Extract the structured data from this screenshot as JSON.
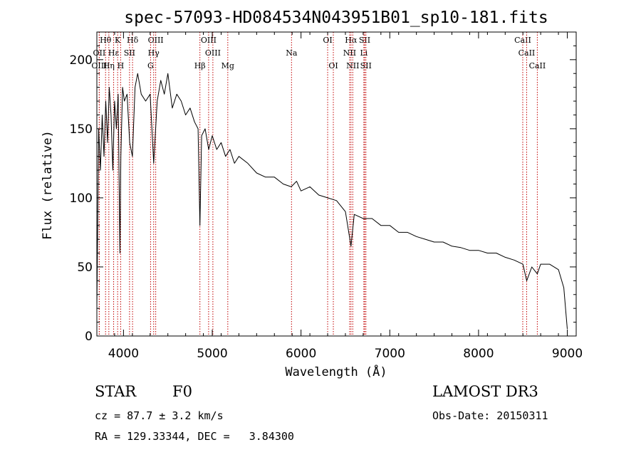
{
  "chart_data": {
    "type": "line",
    "title": "spec-57093-HD084534N043951B01_sp10-181.fits",
    "xlabel": "Wavelength (Å)",
    "ylabel": "Flux (relative)",
    "xlim": [
      3700,
      9100
    ],
    "ylim": [
      0,
      220
    ],
    "x_ticks": [
      4000,
      5000,
      6000,
      7000,
      8000,
      9000
    ],
    "x_tick_labels": [
      "4000",
      "5000",
      "6000",
      "7000",
      "8000",
      "9000"
    ],
    "y_ticks": [
      0,
      50,
      100,
      150,
      200
    ],
    "y_tick_labels": [
      "0",
      "50",
      "100",
      "150",
      "200"
    ],
    "series": [
      {
        "name": "flux",
        "x": [
          3700,
          3720,
          3740,
          3760,
          3780,
          3800,
          3820,
          3840,
          3860,
          3880,
          3900,
          3920,
          3940,
          3960,
          3970,
          3990,
          4010,
          4040,
          4070,
          4100,
          4130,
          4160,
          4200,
          4250,
          4300,
          4340,
          4380,
          4420,
          4460,
          4500,
          4550,
          4600,
          4650,
          4700,
          4750,
          4800,
          4840,
          4861,
          4880,
          4920,
          4960,
          5000,
          5050,
          5100,
          5150,
          5200,
          5250,
          5300,
          5400,
          5500,
          5600,
          5700,
          5800,
          5890,
          5950,
          6000,
          6100,
          6200,
          6300,
          6400,
          6500,
          6563,
          6600,
          6700,
          6800,
          6900,
          7000,
          7100,
          7200,
          7300,
          7400,
          7500,
          7600,
          7700,
          7800,
          7900,
          8000,
          8100,
          8200,
          8300,
          8400,
          8500,
          8542,
          8600,
          8662,
          8700,
          8800,
          8900,
          8960,
          9000
        ],
        "values": [
          20,
          150,
          120,
          160,
          130,
          170,
          140,
          180,
          160,
          120,
          170,
          150,
          175,
          60,
          130,
          180,
          170,
          175,
          140,
          130,
          180,
          190,
          175,
          170,
          175,
          125,
          170,
          185,
          175,
          190,
          165,
          175,
          170,
          160,
          165,
          155,
          150,
          80,
          145,
          150,
          135,
          145,
          135,
          140,
          130,
          135,
          125,
          130,
          125,
          118,
          115,
          115,
          110,
          108,
          112,
          105,
          108,
          102,
          100,
          98,
          90,
          65,
          88,
          85,
          85,
          80,
          80,
          75,
          75,
          72,
          70,
          68,
          68,
          65,
          64,
          62,
          62,
          60,
          60,
          57,
          55,
          52,
          40,
          50,
          45,
          52,
          52,
          48,
          35,
          5
        ]
      }
    ],
    "spectral_lines": [
      {
        "label": "Hθ",
        "x": 3798,
        "row": 0
      },
      {
        "label": "K",
        "x": 3934,
        "row": 0
      },
      {
        "label": "Hδ",
        "x": 4102,
        "row": 0
      },
      {
        "label": "OIII",
        "x": 4363,
        "row": 0
      },
      {
        "label": "OIII",
        "x": 4959,
        "row": 0
      },
      {
        "label": "OI",
        "x": 6300,
        "row": 0
      },
      {
        "label": "Hα",
        "x": 6563,
        "row": 0
      },
      {
        "label": "SII",
        "x": 6717,
        "row": 0
      },
      {
        "label": "CaII",
        "x": 8498,
        "row": 0
      },
      {
        "label": "OII",
        "x": 3727,
        "row": 1
      },
      {
        "label": "Hε",
        "x": 3889,
        "row": 1
      },
      {
        "label": "SII",
        "x": 4068,
        "row": 1
      },
      {
        "label": "Hγ",
        "x": 4340,
        "row": 1
      },
      {
        "label": "OIII",
        "x": 5007,
        "row": 1
      },
      {
        "label": "Na",
        "x": 5893,
        "row": 1
      },
      {
        "label": "NII",
        "x": 6548,
        "row": 1
      },
      {
        "label": "Li",
        "x": 6708,
        "row": 1
      },
      {
        "label": "CaII",
        "x": 8542,
        "row": 1
      },
      {
        "label": "OIII",
        "x": 3727,
        "row": 2
      },
      {
        "label": "Hη",
        "x": 3835,
        "row": 2
      },
      {
        "label": "H",
        "x": 3968,
        "row": 2
      },
      {
        "label": "G",
        "x": 4305,
        "row": 2
      },
      {
        "label": "Hβ",
        "x": 4861,
        "row": 2
      },
      {
        "label": "Mg",
        "x": 5175,
        "row": 2
      },
      {
        "label": "OI",
        "x": 6364,
        "row": 2
      },
      {
        "label": "NII",
        "x": 6583,
        "row": 2
      },
      {
        "label": "SII",
        "x": 6731,
        "row": 2
      },
      {
        "label": "CaII",
        "x": 8662,
        "row": 2
      }
    ],
    "line_color": "#000000",
    "marker_color": "#c00000"
  },
  "info": {
    "object_type": "STAR",
    "spectral_class": "F0",
    "survey": "LAMOST DR3",
    "redshift": "cz = 87.7 ± 3.2 km/s",
    "obs_date": "Obs-Date: 20150311",
    "coordinates": "RA = 129.33344, DEC =   3.84300"
  }
}
